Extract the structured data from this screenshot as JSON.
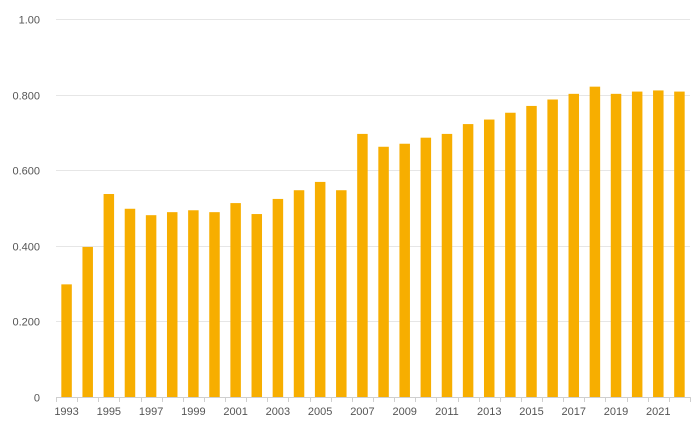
{
  "chart_data": {
    "type": "bar",
    "title": "",
    "xlabel": "",
    "ylabel": "",
    "categories": [
      "1993",
      "1994",
      "1995",
      "1996",
      "1997",
      "1998",
      "1999",
      "2000",
      "2001",
      "2002",
      "2003",
      "2004",
      "2005",
      "2006",
      "2007",
      "2008",
      "2009",
      "2010",
      "2011",
      "2012",
      "2013",
      "2014",
      "2015",
      "2016",
      "2017",
      "2018",
      "2019",
      "2020",
      "2021",
      "2022"
    ],
    "x_tick_labels": [
      "1993",
      "1995",
      "1997",
      "1999",
      "2001",
      "2003",
      "2005",
      "2007",
      "2009",
      "2011",
      "2013",
      "2015",
      "2017",
      "2019",
      "2021"
    ],
    "values": [
      0.298,
      0.397,
      0.537,
      0.498,
      0.481,
      0.489,
      0.494,
      0.489,
      0.513,
      0.484,
      0.524,
      0.547,
      0.569,
      0.547,
      0.696,
      0.662,
      0.67,
      0.686,
      0.696,
      0.722,
      0.734,
      0.752,
      0.77,
      0.787,
      0.802,
      0.821,
      0.802,
      0.808,
      0.811,
      0.808
    ],
    "ylim": [
      0,
      1.0
    ],
    "y_ticks": [
      0,
      0.2,
      0.4,
      0.6,
      0.8,
      1.0
    ],
    "y_tick_labels": [
      "0",
      "0.200",
      "0.400",
      "0.600",
      "0.800",
      "1.00"
    ],
    "grid": true,
    "legend": "none",
    "colors": {
      "bar": "#f7ae00"
    }
  }
}
